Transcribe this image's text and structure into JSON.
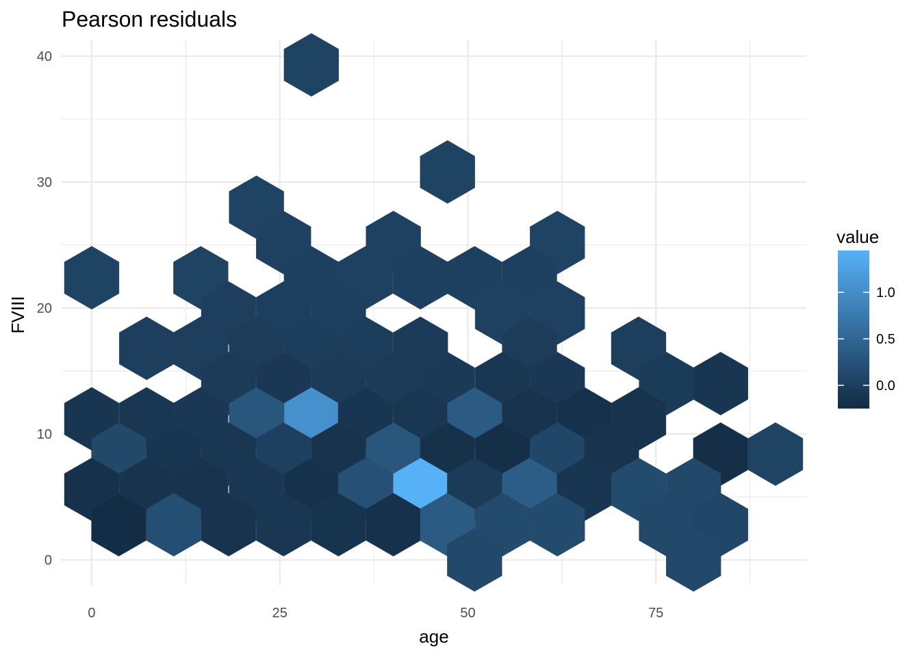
{
  "chart_data": {
    "type": "heatmap",
    "subtype": "hexbin",
    "title": "Pearson residuals",
    "xlabel": "age",
    "ylabel": "FVIII",
    "xlim": [
      -4,
      95
    ],
    "ylim": [
      -2,
      41.3
    ],
    "x_ticks": [
      0,
      25,
      50,
      75
    ],
    "y_ticks": [
      0,
      10,
      20,
      30,
      40
    ],
    "grid": true,
    "legend": {
      "title": "value",
      "placement": "right",
      "range": [
        -0.25,
        1.45
      ],
      "ticks": [
        0.0,
        0.5,
        1.0
      ],
      "tick_labels": [
        "0.0",
        "0.5",
        "1.0"
      ],
      "color_low": "#132B43",
      "color_high": "#56B1F7"
    },
    "cells": [
      {
        "x": 29.2,
        "y": 39.3,
        "value": 0.05
      },
      {
        "x": 47.3,
        "y": 30.8,
        "value": 0.05
      },
      {
        "x": 21.9,
        "y": 28.0,
        "value": 0.05
      },
      {
        "x": 25.5,
        "y": 25.2,
        "value": 0.03
      },
      {
        "x": 40.1,
        "y": 25.2,
        "value": 0.03
      },
      {
        "x": 61.9,
        "y": 25.2,
        "value": 0.05
      },
      {
        "x": 0.0,
        "y": 22.4,
        "value": 0.05
      },
      {
        "x": 14.5,
        "y": 22.4,
        "value": 0.05
      },
      {
        "x": 29.2,
        "y": 22.4,
        "value": 0.02
      },
      {
        "x": 36.4,
        "y": 22.4,
        "value": 0.03
      },
      {
        "x": 43.7,
        "y": 22.4,
        "value": 0.02
      },
      {
        "x": 50.9,
        "y": 22.4,
        "value": 0.02
      },
      {
        "x": 58.2,
        "y": 22.4,
        "value": 0.02
      },
      {
        "x": 18.2,
        "y": 19.6,
        "value": 0.0
      },
      {
        "x": 25.5,
        "y": 19.6,
        "value": 0.01
      },
      {
        "x": 32.8,
        "y": 19.6,
        "value": 0.02
      },
      {
        "x": 54.6,
        "y": 19.6,
        "value": 0.03
      },
      {
        "x": 61.9,
        "y": 19.6,
        "value": 0.03
      },
      {
        "x": 7.3,
        "y": 16.8,
        "value": 0.0
      },
      {
        "x": 14.5,
        "y": 16.8,
        "value": 0.0
      },
      {
        "x": 21.9,
        "y": 16.8,
        "value": -0.03
      },
      {
        "x": 29.2,
        "y": 16.8,
        "value": -0.02
      },
      {
        "x": 36.4,
        "y": 16.8,
        "value": -0.01
      },
      {
        "x": 43.7,
        "y": 16.8,
        "value": -0.05
      },
      {
        "x": 58.2,
        "y": 16.8,
        "value": -0.03
      },
      {
        "x": 72.7,
        "y": 16.8,
        "value": 0.0
      },
      {
        "x": 18.2,
        "y": 14.0,
        "value": -0.05
      },
      {
        "x": 25.5,
        "y": 14.0,
        "value": -0.08
      },
      {
        "x": 32.8,
        "y": 14.0,
        "value": -0.05
      },
      {
        "x": 40.1,
        "y": 14.0,
        "value": -0.05
      },
      {
        "x": 47.3,
        "y": 14.0,
        "value": -0.06
      },
      {
        "x": 54.6,
        "y": 14.0,
        "value": -0.1
      },
      {
        "x": 61.9,
        "y": 14.0,
        "value": -0.08
      },
      {
        "x": 76.4,
        "y": 14.0,
        "value": -0.04
      },
      {
        "x": 83.6,
        "y": 14.0,
        "value": -0.12
      },
      {
        "x": 0.0,
        "y": 11.2,
        "value": -0.12
      },
      {
        "x": 7.3,
        "y": 11.2,
        "value": -0.1
      },
      {
        "x": 14.5,
        "y": 11.2,
        "value": -0.08
      },
      {
        "x": 21.9,
        "y": 11.2,
        "value": 0.3
      },
      {
        "x": 29.2,
        "y": 11.2,
        "value": 1.05
      },
      {
        "x": 36.4,
        "y": 11.2,
        "value": -0.12
      },
      {
        "x": 43.7,
        "y": 11.2,
        "value": -0.1
      },
      {
        "x": 50.9,
        "y": 11.2,
        "value": 0.35
      },
      {
        "x": 58.2,
        "y": 11.2,
        "value": -0.15
      },
      {
        "x": 65.5,
        "y": 11.2,
        "value": -0.17
      },
      {
        "x": 72.7,
        "y": 11.2,
        "value": -0.15
      },
      {
        "x": 3.6,
        "y": 8.4,
        "value": 0.12
      },
      {
        "x": 10.9,
        "y": 8.4,
        "value": -0.12
      },
      {
        "x": 18.2,
        "y": 8.4,
        "value": -0.1
      },
      {
        "x": 25.5,
        "y": 8.4,
        "value": 0.02
      },
      {
        "x": 32.8,
        "y": 8.4,
        "value": -0.15
      },
      {
        "x": 40.1,
        "y": 8.4,
        "value": 0.3
      },
      {
        "x": 47.3,
        "y": 8.4,
        "value": -0.18
      },
      {
        "x": 54.6,
        "y": 8.4,
        "value": -0.2
      },
      {
        "x": 61.9,
        "y": 8.4,
        "value": 0.1
      },
      {
        "x": 69.1,
        "y": 8.4,
        "value": -0.15
      },
      {
        "x": 83.6,
        "y": 8.4,
        "value": -0.2
      },
      {
        "x": 90.9,
        "y": 8.4,
        "value": 0.05
      },
      {
        "x": 0.0,
        "y": 5.6,
        "value": -0.17
      },
      {
        "x": 7.3,
        "y": 5.6,
        "value": -0.15
      },
      {
        "x": 14.5,
        "y": 5.6,
        "value": -0.15
      },
      {
        "x": 21.9,
        "y": 5.6,
        "value": -0.08
      },
      {
        "x": 29.2,
        "y": 5.6,
        "value": -0.17
      },
      {
        "x": 36.4,
        "y": 5.6,
        "value": 0.22
      },
      {
        "x": 43.7,
        "y": 5.6,
        "value": 1.45
      },
      {
        "x": 50.9,
        "y": 5.6,
        "value": -0.05
      },
      {
        "x": 58.2,
        "y": 5.6,
        "value": 0.38
      },
      {
        "x": 65.5,
        "y": 5.6,
        "value": -0.12
      },
      {
        "x": 72.7,
        "y": 5.6,
        "value": 0.15
      },
      {
        "x": 80.0,
        "y": 5.6,
        "value": 0.12
      },
      {
        "x": 3.6,
        "y": 2.8,
        "value": -0.22
      },
      {
        "x": 10.9,
        "y": 2.8,
        "value": 0.2
      },
      {
        "x": 18.2,
        "y": 2.8,
        "value": -0.15
      },
      {
        "x": 25.5,
        "y": 2.8,
        "value": -0.1
      },
      {
        "x": 32.8,
        "y": 2.8,
        "value": -0.14
      },
      {
        "x": 40.1,
        "y": 2.8,
        "value": -0.17
      },
      {
        "x": 47.3,
        "y": 2.8,
        "value": 0.35
      },
      {
        "x": 54.6,
        "y": 2.8,
        "value": 0.15
      },
      {
        "x": 61.9,
        "y": 2.8,
        "value": 0.15
      },
      {
        "x": 76.4,
        "y": 2.8,
        "value": 0.12
      },
      {
        "x": 83.6,
        "y": 2.8,
        "value": 0.1
      },
      {
        "x": 50.9,
        "y": 0.0,
        "value": 0.12
      },
      {
        "x": 80.0,
        "y": 0.0,
        "value": 0.12
      }
    ]
  }
}
